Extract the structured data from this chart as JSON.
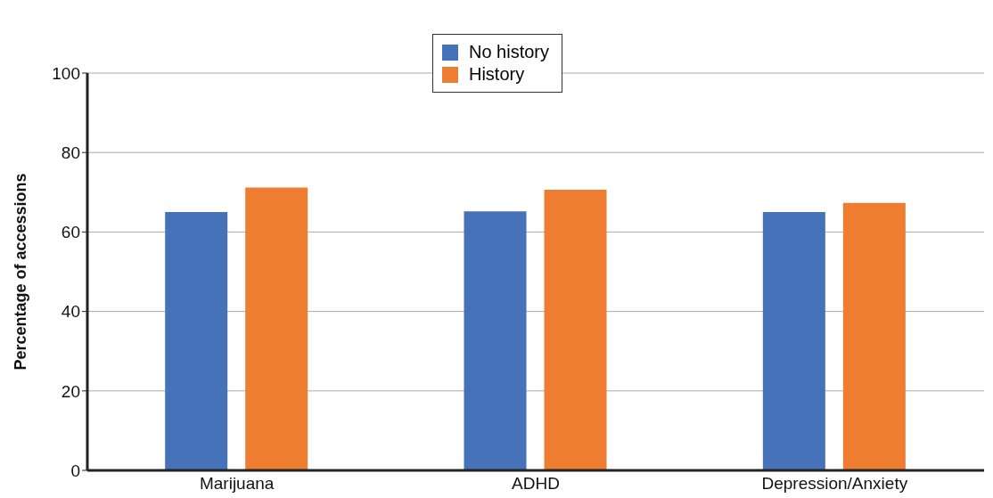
{
  "chart_data": {
    "type": "bar",
    "ylabel": "Percentage of accessions",
    "categories": [
      "Marijuana",
      "ADHD",
      "Depression/Anxiety"
    ],
    "series": [
      {
        "name": "No history",
        "color": "#4572b9",
        "values": [
          65,
          65.2,
          65
        ]
      },
      {
        "name": "History",
        "color": "#ee7d31",
        "values": [
          71.2,
          70.6,
          67.3
        ]
      }
    ],
    "ylim": [
      0,
      100
    ],
    "yticks": [
      0,
      20,
      40,
      60,
      80,
      100
    ],
    "grid": "y",
    "legend": "top"
  }
}
